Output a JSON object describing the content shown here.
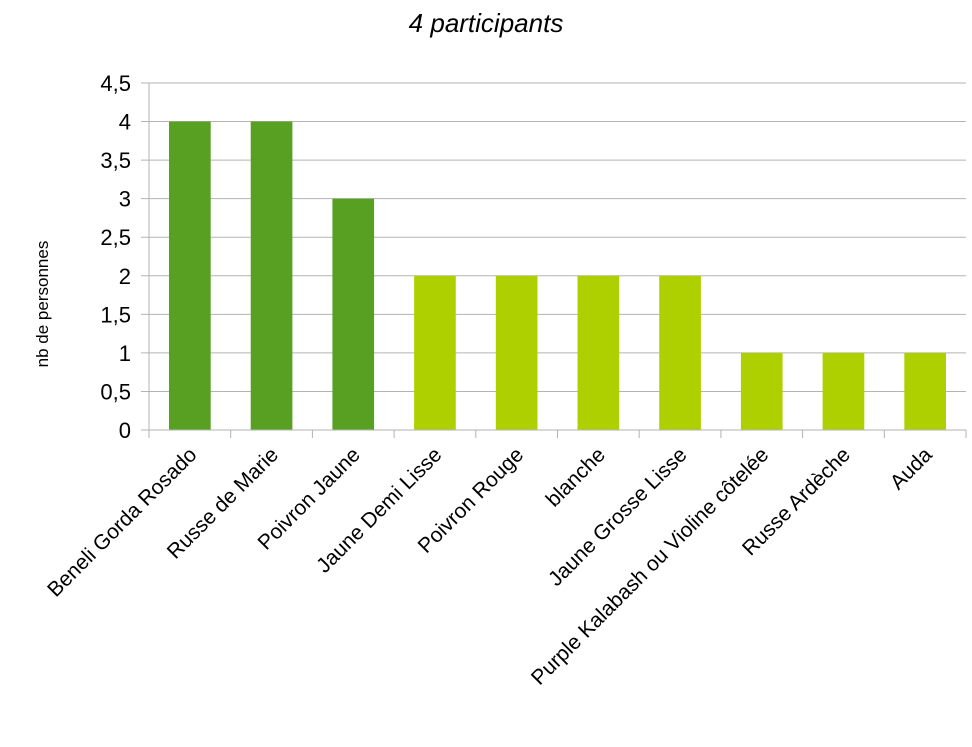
{
  "chart_data": {
    "type": "bar",
    "title": "4 participants",
    "xlabel": "",
    "ylabel": "nb de personnes",
    "ylim": [
      0,
      4.5
    ],
    "ytick_step": 0.5,
    "yticks": [
      "0",
      "0,5",
      "1",
      "1,5",
      "2",
      "2,5",
      "3",
      "3,5",
      "4",
      "4,5"
    ],
    "grid": true,
    "legend": "none",
    "categories": [
      "Beneli Gorda Rosado",
      "Russe de Marie",
      "Poivron Jaune",
      "Jaune Demi Lisse",
      "Poivron Rouge",
      "blanche",
      "Jaune Grosse Lisse",
      "Purple Kalabash ou Violine côtelée",
      "Russe Ardèche",
      "Auda"
    ],
    "values": [
      4,
      4,
      3,
      2,
      2,
      2,
      2,
      1,
      1,
      1
    ],
    "colors": {
      "dark_green": "#57a021",
      "light_green": "#afd000",
      "grid": "#b3b3b3"
    },
    "bar_color_keys": [
      "dark_green",
      "dark_green",
      "dark_green",
      "light_green",
      "light_green",
      "light_green",
      "light_green",
      "light_green",
      "light_green",
      "light_green"
    ]
  }
}
